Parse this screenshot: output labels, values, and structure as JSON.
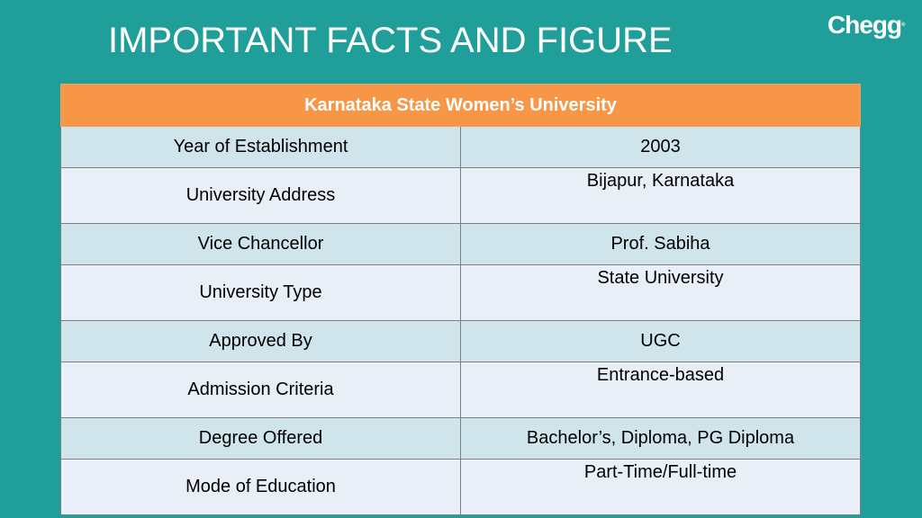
{
  "page_title": "IMPORTANT FACTS AND FIGURE",
  "logo": {
    "text": "Chegg",
    "mark": "®"
  },
  "table": {
    "header": "Karnataka State  Women’s University",
    "rows": [
      {
        "key": "Year of Establishment",
        "value": "2003"
      },
      {
        "key": "University Address",
        "value": "Bijapur, Karnataka"
      },
      {
        "key": "Vice Chancellor",
        "value": "Prof. Sabiha"
      },
      {
        "key": "University Type",
        "value": "State University"
      },
      {
        "key": "Approved By",
        "value": "UGC"
      },
      {
        "key": "Admission Criteria",
        "value": "Entrance-based"
      },
      {
        "key": "Degree Offered",
        "value": "Bachelor’s, Diploma, PG Diploma"
      },
      {
        "key": "Mode of Education",
        "value": "Part-Time/Full-time"
      }
    ]
  },
  "colors": {
    "background": "#1f9e9a",
    "header": "#f79646",
    "row_dark": "#d0e4ec",
    "row_light": "#e9eff6"
  }
}
